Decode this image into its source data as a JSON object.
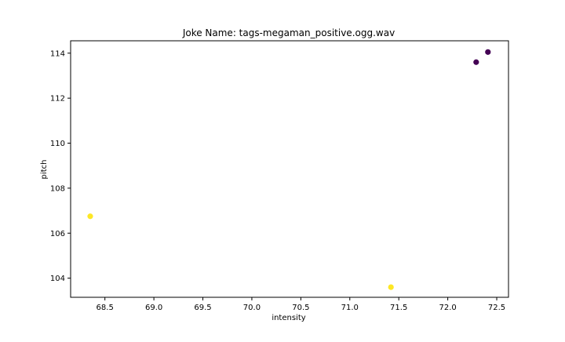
{
  "chart_data": {
    "type": "scatter",
    "title": "Joke Name: tags-megaman_positive.ogg.wav",
    "xlabel": "intensity",
    "ylabel": "pitch",
    "xlim": [
      68.15,
      72.62
    ],
    "ylim": [
      103.15,
      114.55
    ],
    "xticks": [
      68.5,
      69.0,
      69.5,
      70.0,
      70.5,
      71.0,
      71.5,
      72.0,
      72.5
    ],
    "xtick_labels": [
      "68.5",
      "69.0",
      "69.5",
      "70.0",
      "70.5",
      "71.0",
      "71.5",
      "72.0",
      "72.5"
    ],
    "yticks": [
      104,
      106,
      108,
      110,
      112,
      114
    ],
    "ytick_labels": [
      "104",
      "106",
      "108",
      "110",
      "112",
      "114"
    ],
    "grid": false,
    "points": [
      {
        "x": 68.35,
        "y": 106.75,
        "color": "#fde725"
      },
      {
        "x": 71.42,
        "y": 103.6,
        "color": "#fde725"
      },
      {
        "x": 72.29,
        "y": 113.6,
        "color": "#440154"
      },
      {
        "x": 72.41,
        "y": 114.05,
        "color": "#440154"
      }
    ]
  }
}
